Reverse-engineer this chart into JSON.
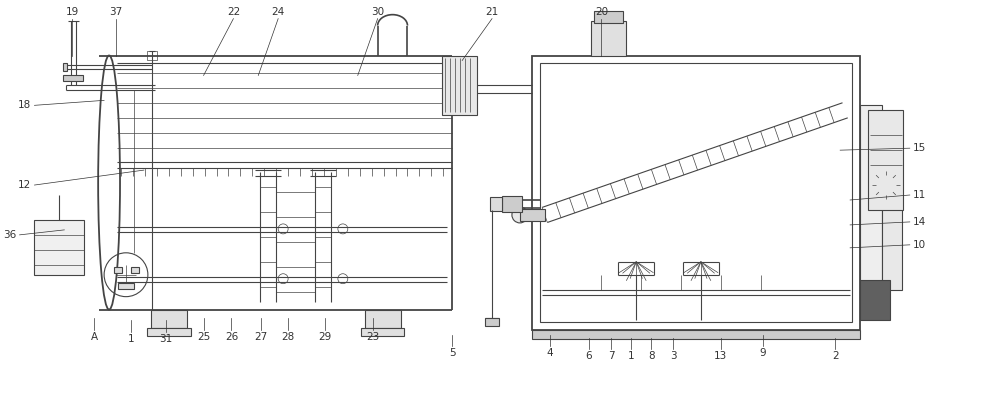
{
  "fig_width": 10.0,
  "fig_height": 3.94,
  "dpi": 100,
  "bg_color": "#ffffff",
  "lc": "#444444",
  "lw": 0.8,
  "tlw": 0.5,
  "thklw": 1.3,
  "fs": 7.5
}
